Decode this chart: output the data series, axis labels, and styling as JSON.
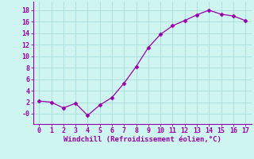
{
  "x": [
    0,
    1,
    2,
    3,
    4,
    5,
    6,
    7,
    8,
    9,
    10,
    11,
    12,
    13,
    14,
    15,
    16,
    17
  ],
  "y": [
    2.2,
    2.0,
    1.0,
    1.8,
    -0.3,
    1.5,
    2.8,
    5.3,
    8.2,
    11.5,
    13.8,
    15.3,
    16.2,
    17.2,
    18.0,
    17.3,
    17.0,
    16.2
  ],
  "line_color": "#9900aa",
  "marker": "D",
  "marker_size": 2.5,
  "background_color": "#cef5f0",
  "grid_color": "#aadddd",
  "xlabel": "Windchill (Refroidissement éolien,°C)",
  "xlabel_color": "#9900aa",
  "tick_color": "#9900aa",
  "spine_color": "#9900aa",
  "xlim": [
    -0.5,
    17.5
  ],
  "ylim": [
    -1.8,
    19.5
  ],
  "yticks": [
    0,
    2,
    4,
    6,
    8,
    10,
    12,
    14,
    16,
    18
  ],
  "ytick_labels": [
    "-0",
    "2",
    "4",
    "6",
    "8",
    "10",
    "12",
    "14",
    "16",
    "18"
  ],
  "xticks": [
    0,
    1,
    2,
    3,
    4,
    5,
    6,
    7,
    8,
    9,
    10,
    11,
    12,
    13,
    14,
    15,
    16,
    17
  ]
}
